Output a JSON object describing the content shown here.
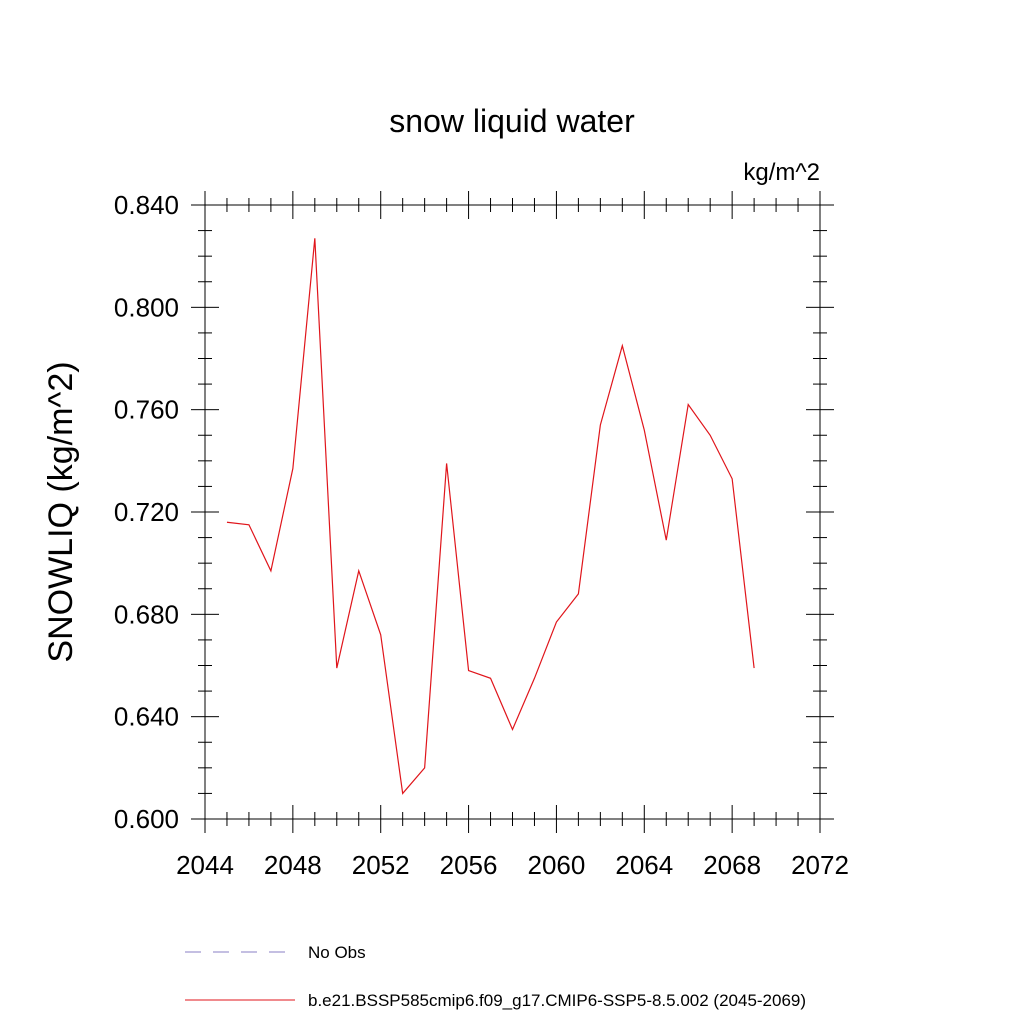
{
  "chart_data": {
    "type": "line",
    "title": "snow liquid water",
    "units_label": "kg/m^2",
    "ylabel": "SNOWLIQ  (kg/m^2)",
    "xlabel": "",
    "xlim": [
      2044,
      2072
    ],
    "ylim": [
      0.6,
      0.84
    ],
    "x_ticks": [
      "2044",
      "2048",
      "2052",
      "2056",
      "2060",
      "2064",
      "2068",
      "2072"
    ],
    "y_ticks": [
      "0.600",
      "0.640",
      "0.680",
      "0.720",
      "0.760",
      "0.800",
      "0.840"
    ],
    "grid": false,
    "legend_position": "bottom",
    "series": [
      {
        "name": "b.e21.BSSP585cmip6.f09_g17.CMIP6-SSP5-8.5.002 (2045-2069)",
        "color": "#e0151b",
        "style": "solid",
        "x": [
          2045,
          2046,
          2047,
          2048,
          2049,
          2050,
          2051,
          2052,
          2053,
          2054,
          2055,
          2056,
          2057,
          2058,
          2059,
          2060,
          2061,
          2062,
          2063,
          2064,
          2065,
          2066,
          2067,
          2068,
          2069
        ],
        "y": [
          0.716,
          0.715,
          0.697,
          0.737,
          0.827,
          0.659,
          0.697,
          0.672,
          0.61,
          0.62,
          0.739,
          0.658,
          0.655,
          0.635,
          0.655,
          0.677,
          0.688,
          0.754,
          0.785,
          0.752,
          0.709,
          0.762,
          0.75,
          0.733,
          0.659
        ]
      }
    ],
    "legend": [
      {
        "label": "No Obs",
        "color": "#8a7fc4",
        "style": "dashed"
      },
      {
        "label": "b.e21.BSSP585cmip6.f09_g17.CMIP6-SSP5-8.5.002 (2045-2069)",
        "color": "#e0151b",
        "style": "solid"
      }
    ]
  }
}
